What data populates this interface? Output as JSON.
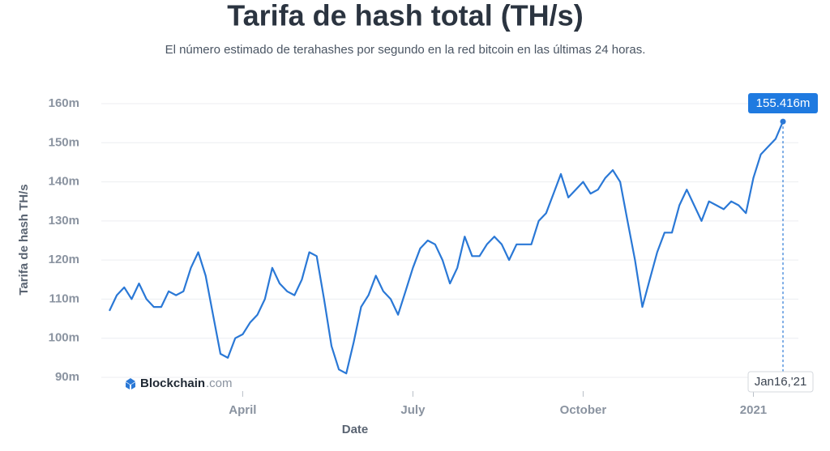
{
  "chart_data": {
    "type": "line",
    "title": "Tarifa de hash total (TH/s)",
    "subtitle": "El número estimado de terahashes por segundo en la red bitcoin en las últimas 24 horas.",
    "y_label": "Tarifa de hash TH/s",
    "x_label": "Date",
    "watermark_brand": "Blockchain",
    "watermark_domain": ".com",
    "color": "#2a78d6",
    "grid": true,
    "ylim": [
      90000000,
      160000000
    ],
    "yticks": [
      {
        "value": 90000000,
        "label": "90m"
      },
      {
        "value": 100000000,
        "label": "100m"
      },
      {
        "value": 110000000,
        "label": "110m"
      },
      {
        "value": 120000000,
        "label": "120m"
      },
      {
        "value": 130000000,
        "label": "130m"
      },
      {
        "value": 140000000,
        "label": "140m"
      },
      {
        "value": 150000000,
        "label": "150m"
      },
      {
        "value": 160000000,
        "label": "160m"
      }
    ],
    "categories": [
      null,
      null,
      null,
      null,
      null,
      null,
      null,
      null,
      null,
      null,
      null,
      null,
      null,
      null,
      null,
      null,
      null,
      null,
      "April",
      null,
      null,
      null,
      null,
      null,
      null,
      null,
      null,
      null,
      null,
      null,
      null,
      null,
      null,
      null,
      null,
      null,
      null,
      null,
      null,
      null,
      null,
      "July",
      null,
      null,
      null,
      null,
      null,
      null,
      null,
      null,
      null,
      null,
      null,
      null,
      null,
      null,
      null,
      null,
      null,
      null,
      null,
      null,
      null,
      null,
      "October",
      null,
      null,
      null,
      null,
      null,
      null,
      null,
      null,
      null,
      null,
      null,
      null,
      null,
      null,
      null,
      null,
      null,
      null,
      null,
      null,
      null,
      null,
      "2021",
      null,
      null,
      null,
      "Jan16,'21"
    ],
    "values": [
      107000000,
      111000000,
      113000000,
      110000000,
      114000000,
      110000000,
      108000000,
      108000000,
      112000000,
      111000000,
      112000000,
      118000000,
      122000000,
      116000000,
      106000000,
      96000000,
      95000000,
      100000000,
      101000000,
      104000000,
      106000000,
      110000000,
      118000000,
      114000000,
      112000000,
      111000000,
      115000000,
      122000000,
      121000000,
      110000000,
      98000000,
      92000000,
      91000000,
      99000000,
      108000000,
      111000000,
      116000000,
      112000000,
      110000000,
      106000000,
      112000000,
      118000000,
      123000000,
      125000000,
      124000000,
      120000000,
      114000000,
      118000000,
      126000000,
      121000000,
      121000000,
      124000000,
      126000000,
      124000000,
      120000000,
      124000000,
      124000000,
      124000000,
      130000000,
      132000000,
      137000000,
      142000000,
      136000000,
      138000000,
      140000000,
      137000000,
      138000000,
      141000000,
      143000000,
      140000000,
      130000000,
      120000000,
      108000000,
      115000000,
      122000000,
      127000000,
      127000000,
      134000000,
      138000000,
      134000000,
      130000000,
      135000000,
      134000000,
      133000000,
      135000000,
      134000000,
      132000000,
      141000000,
      147000000,
      149000000,
      151000000,
      155416000
    ],
    "value_labels": [
      null,
      null,
      null,
      null,
      null,
      null,
      null,
      null,
      null,
      null,
      null,
      null,
      null,
      null,
      null,
      null,
      null,
      null,
      null,
      null,
      null,
      null,
      null,
      null,
      null,
      null,
      null,
      null,
      null,
      null,
      null,
      null,
      null,
      null,
      null,
      null,
      null,
      null,
      null,
      null,
      null,
      null,
      null,
      null,
      null,
      null,
      null,
      null,
      null,
      null,
      null,
      null,
      null,
      null,
      null,
      null,
      null,
      null,
      null,
      null,
      null,
      null,
      null,
      null,
      null,
      null,
      null,
      null,
      null,
      null,
      null,
      null,
      null,
      null,
      null,
      null,
      null,
      null,
      null,
      null,
      null,
      null,
      null,
      null,
      null,
      null,
      null,
      null,
      null,
      null,
      null,
      "155.416m"
    ]
  }
}
